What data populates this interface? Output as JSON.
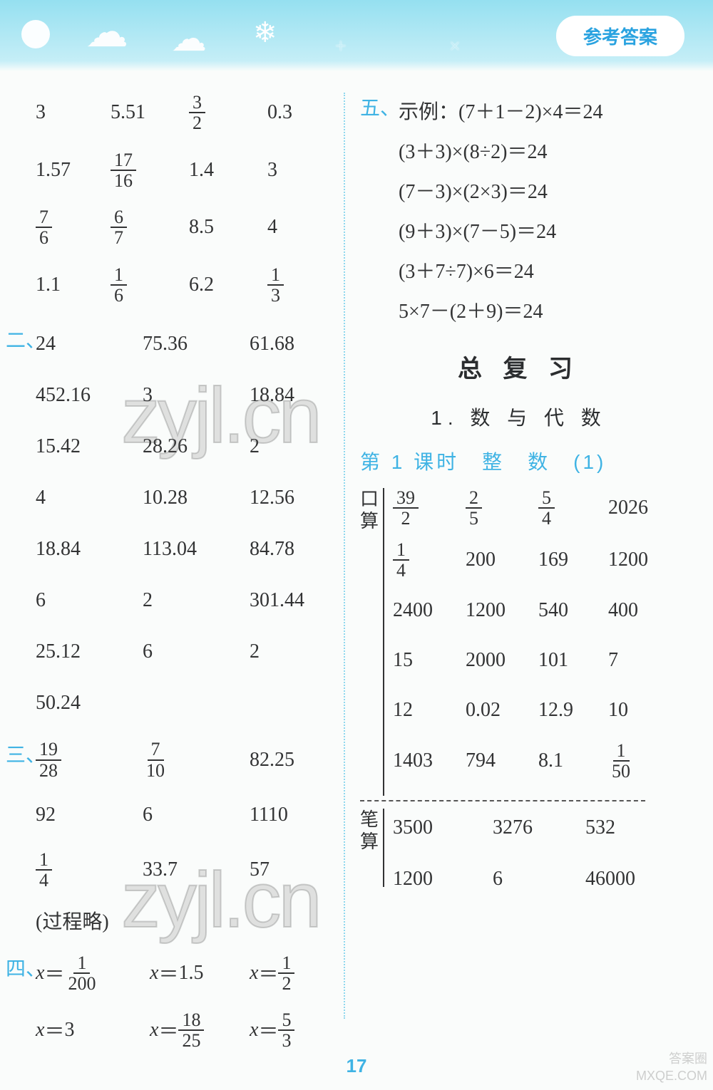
{
  "header": {
    "badge": "参考答案"
  },
  "watermarks": {
    "w1": "zyjl.cn",
    "w2": "zyjl.cn"
  },
  "page_number": "17",
  "corner": {
    "l1": "答案圈",
    "l2": "MXQE.COM"
  },
  "colors": {
    "header_gradient_top": "#95e0f0",
    "header_gradient_mid": "#c5eef7",
    "page_bg": "#fafcfb",
    "accent": "#3fb3e4",
    "badge_text": "#2aa3e0",
    "text": "#323334",
    "divider": "#8fd8ee"
  },
  "sec1": {
    "grid_cols": 4,
    "rows": [
      [
        "3",
        "5.51",
        {
          "n": "3",
          "d": "2"
        },
        "0.3"
      ],
      [
        "1.57",
        {
          "n": "17",
          "d": "16"
        },
        "1.4",
        "3"
      ],
      [
        {
          "n": "7",
          "d": "6"
        },
        {
          "n": "6",
          "d": "7"
        },
        "8.5",
        "4"
      ],
      [
        "1.1",
        {
          "n": "1",
          "d": "6"
        },
        "6.2",
        {
          "n": "1",
          "d": "3"
        }
      ]
    ]
  },
  "sec2": {
    "label": "二、",
    "grid_cols": 3,
    "rows": [
      [
        "24",
        "75.36",
        "61.68"
      ],
      [
        "452.16",
        "3",
        "18.84"
      ],
      [
        "15.42",
        "28.26",
        "2"
      ],
      [
        "4",
        "10.28",
        "12.56"
      ],
      [
        "18.84",
        "113.04",
        "84.78"
      ],
      [
        "6",
        "2",
        "301.44"
      ],
      [
        "25.12",
        "6",
        "2"
      ],
      [
        "50.24",
        "",
        ""
      ]
    ]
  },
  "sec3": {
    "label": "三、",
    "grid_cols": 3,
    "rows": [
      [
        {
          "n": "19",
          "d": "28"
        },
        {
          "n": "7",
          "d": "10"
        },
        "82.25"
      ],
      [
        "92",
        "6",
        "1110"
      ],
      [
        {
          "n": "1",
          "d": "4"
        },
        "33.7",
        "57"
      ]
    ],
    "note": "(过程略)"
  },
  "sec4": {
    "label": "四、",
    "items": [
      {
        "pre": "x=",
        "frac": {
          "n": "1",
          "d": "200"
        }
      },
      {
        "pre": "x=",
        "val": "1.5"
      },
      {
        "pre": "x=",
        "frac": {
          "n": "1",
          "d": "2"
        }
      },
      {
        "pre": "x=",
        "val": "3"
      },
      {
        "pre": "x=",
        "frac": {
          "n": "18",
          "d": "25"
        }
      },
      {
        "pre": "x=",
        "frac": {
          "n": "5",
          "d": "3"
        }
      }
    ]
  },
  "sec5": {
    "label": "五、",
    "intro": "示例：",
    "lines": [
      "(7＋1－2)×4＝24",
      "(3＋3)×(8÷2)＝24",
      "(7－3)×(2×3)＝24",
      "(9＋3)×(7－5)＝24",
      "(3＋7÷7)×6＝24",
      "5×7－(2＋9)＝24"
    ]
  },
  "review": {
    "title": "总 复 习",
    "subtitle": "1. 数 与 代 数",
    "lesson": "第 1 课时　整　数　(1)"
  },
  "kousuan": {
    "label_a": "口",
    "label_b": "算",
    "grid_cols": 4,
    "rows": [
      [
        {
          "n": "39",
          "d": "2"
        },
        {
          "n": "2",
          "d": "5"
        },
        {
          "n": "5",
          "d": "4"
        },
        "2026"
      ],
      [
        {
          "n": "1",
          "d": "4"
        },
        "200",
        "169",
        "1200"
      ],
      [
        "2400",
        "1200",
        "540",
        "400"
      ],
      [
        "15",
        "2000",
        "101",
        "7"
      ],
      [
        "12",
        "0.02",
        "12.9",
        "10"
      ],
      [
        "1403",
        "794",
        "8.1",
        {
          "n": "1",
          "d": "50"
        }
      ]
    ]
  },
  "bisuan": {
    "label_a": "笔",
    "label_b": "算",
    "grid_cols": 3,
    "rows": [
      [
        "3500",
        "3276",
        "532"
      ],
      [
        "1200",
        "6",
        "46000"
      ]
    ]
  }
}
